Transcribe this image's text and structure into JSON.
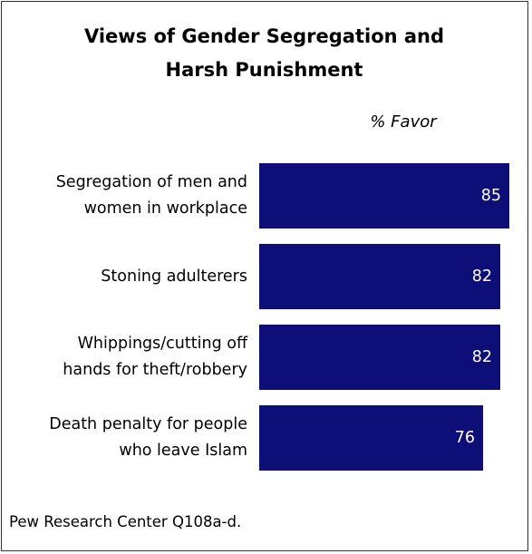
{
  "title_lines": [
    "Views of Gender Segregation and",
    "Harsh Punishment"
  ],
  "subtitle": "% Favor",
  "source": "Pew Research Center Q108a-d.",
  "colors": {
    "bar": "#0e0e79",
    "value_text": "#ffffff",
    "frame": "#333333"
  },
  "chart_data": {
    "type": "bar",
    "orientation": "horizontal",
    "title": "Views of Gender Segregation and Harsh Punishment",
    "subtitle": "% Favor",
    "categories": [
      [
        "Segregation of men and",
        "women in workplace"
      ],
      [
        "Stoning adulterers"
      ],
      [
        "Whippings/cutting off",
        "hands for theft/robbery"
      ],
      [
        "Death penalty for people",
        "who leave Islam"
      ]
    ],
    "values": [
      85,
      82,
      82,
      76
    ],
    "value_labels": [
      "85",
      "82",
      "82",
      "76"
    ],
    "xlim": [
      0,
      85
    ],
    "grid": false,
    "legend": "none"
  }
}
